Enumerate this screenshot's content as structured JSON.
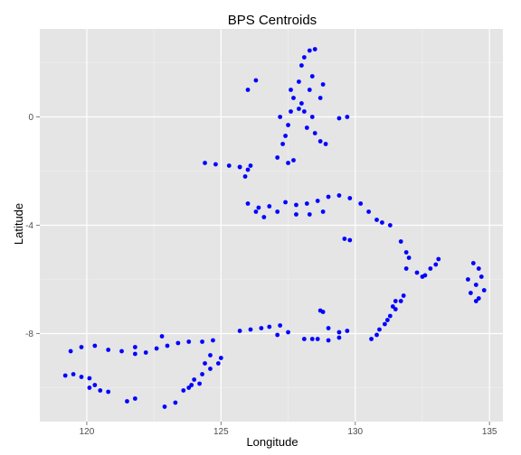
{
  "chart_data": {
    "type": "scatter",
    "title": "BPS Centroids",
    "xlabel": "Longitude",
    "ylabel": "Latitude",
    "xlim": [
      118.25,
      135.5
    ],
    "ylim": [
      -11.25,
      3.25
    ],
    "x_ticks": [
      120,
      125,
      130,
      135
    ],
    "x_tick_labels": [
      "120",
      "125",
      "130",
      "135"
    ],
    "y_ticks": [
      -8,
      -4,
      0
    ],
    "y_tick_labels": [
      "-8",
      "-4",
      "0"
    ],
    "grid": true,
    "panel_color": "#e5e5e5",
    "grid_color": "#ffffff",
    "point_color": "#0000ff",
    "series": [
      {
        "values": [
          {
            "x": 119.2,
            "y": -9.55
          },
          {
            "x": 119.5,
            "y": -9.5
          },
          {
            "x": 119.8,
            "y": -9.6
          },
          {
            "x": 120.1,
            "y": -9.65
          },
          {
            "x": 120.3,
            "y": -9.9
          },
          {
            "x": 120.5,
            "y": -10.1
          },
          {
            "x": 120.8,
            "y": -10.15
          },
          {
            "x": 120.1,
            "y": -10.0
          },
          {
            "x": 119.4,
            "y": -8.65
          },
          {
            "x": 119.8,
            "y": -8.5
          },
          {
            "x": 120.3,
            "y": -8.45
          },
          {
            "x": 120.8,
            "y": -8.6
          },
          {
            "x": 121.3,
            "y": -8.65
          },
          {
            "x": 121.8,
            "y": -8.75
          },
          {
            "x": 122.2,
            "y": -8.7
          },
          {
            "x": 122.6,
            "y": -8.55
          },
          {
            "x": 123.0,
            "y": -8.45
          },
          {
            "x": 123.4,
            "y": -8.35
          },
          {
            "x": 123.8,
            "y": -8.3
          },
          {
            "x": 124.3,
            "y": -8.3
          },
          {
            "x": 124.7,
            "y": -8.25
          },
          {
            "x": 122.8,
            "y": -8.1
          },
          {
            "x": 121.8,
            "y": -8.5
          },
          {
            "x": 121.5,
            "y": -10.5
          },
          {
            "x": 121.8,
            "y": -10.4
          },
          {
            "x": 122.9,
            "y": -10.7
          },
          {
            "x": 123.3,
            "y": -10.55
          },
          {
            "x": 123.6,
            "y": -10.1
          },
          {
            "x": 123.8,
            "y": -10.0
          },
          {
            "x": 124.0,
            "y": -9.7
          },
          {
            "x": 124.3,
            "y": -9.5
          },
          {
            "x": 124.6,
            "y": -9.3
          },
          {
            "x": 124.9,
            "y": -9.1
          },
          {
            "x": 125.0,
            "y": -8.9
          },
          {
            "x": 123.9,
            "y": -9.9
          },
          {
            "x": 124.2,
            "y": -9.85
          },
          {
            "x": 124.4,
            "y": -9.1
          },
          {
            "x": 124.6,
            "y": -8.8
          },
          {
            "x": 124.4,
            "y": -1.7
          },
          {
            "x": 124.8,
            "y": -1.75
          },
          {
            "x": 125.3,
            "y": -1.8
          },
          {
            "x": 125.7,
            "y": -1.85
          },
          {
            "x": 126.0,
            "y": -1.95
          },
          {
            "x": 125.7,
            "y": -1.85
          },
          {
            "x": 125.9,
            "y": -2.2
          },
          {
            "x": 126.1,
            "y": -1.8
          },
          {
            "x": 127.4,
            "y": -3.15
          },
          {
            "x": 127.8,
            "y": -3.25
          },
          {
            "x": 128.2,
            "y": -3.2
          },
          {
            "x": 128.6,
            "y": -3.1
          },
          {
            "x": 129.0,
            "y": -2.95
          },
          {
            "x": 129.4,
            "y": -2.9
          },
          {
            "x": 129.8,
            "y": -3.0
          },
          {
            "x": 130.2,
            "y": -3.2
          },
          {
            "x": 130.5,
            "y": -3.5
          },
          {
            "x": 130.8,
            "y": -3.8
          },
          {
            "x": 131.0,
            "y": -3.9
          },
          {
            "x": 131.3,
            "y": -4.0
          },
          {
            "x": 128.3,
            "y": -3.6
          },
          {
            "x": 128.8,
            "y": -3.5
          },
          {
            "x": 127.8,
            "y": -3.6
          },
          {
            "x": 126.0,
            "y": -3.2
          },
          {
            "x": 126.4,
            "y": -3.35
          },
          {
            "x": 126.8,
            "y": -3.3
          },
          {
            "x": 127.1,
            "y": -3.5
          },
          {
            "x": 126.6,
            "y": -3.7
          },
          {
            "x": 126.3,
            "y": -3.5
          },
          {
            "x": 127.1,
            "y": -1.5
          },
          {
            "x": 127.3,
            "y": -1.0
          },
          {
            "x": 127.5,
            "y": -0.3
          },
          {
            "x": 127.6,
            "y": 0.2
          },
          {
            "x": 127.7,
            "y": 0.7
          },
          {
            "x": 127.9,
            "y": 1.3
          },
          {
            "x": 128.0,
            "y": 1.9
          },
          {
            "x": 128.1,
            "y": 2.2
          },
          {
            "x": 128.3,
            "y": 2.45
          },
          {
            "x": 128.5,
            "y": 2.5
          },
          {
            "x": 128.4,
            "y": 1.5
          },
          {
            "x": 128.3,
            "y": 1.0
          },
          {
            "x": 128.0,
            "y": 0.5
          },
          {
            "x": 128.1,
            "y": 0.2
          },
          {
            "x": 128.4,
            "y": 0.0
          },
          {
            "x": 128.7,
            "y": 0.7
          },
          {
            "x": 128.8,
            "y": 1.2
          },
          {
            "x": 127.9,
            "y": 0.3
          },
          {
            "x": 128.2,
            "y": -0.4
          },
          {
            "x": 128.5,
            "y": -0.6
          },
          {
            "x": 128.7,
            "y": -0.9
          },
          {
            "x": 128.9,
            "y": -1.0
          },
          {
            "x": 127.4,
            "y": -0.7
          },
          {
            "x": 127.6,
            "y": 1.0
          },
          {
            "x": 127.2,
            "y": 0.0
          },
          {
            "x": 126.3,
            "y": 1.35
          },
          {
            "x": 126.0,
            "y": 1.0
          },
          {
            "x": 127.5,
            "y": -1.7
          },
          {
            "x": 127.7,
            "y": -1.6
          },
          {
            "x": 129.4,
            "y": -0.05
          },
          {
            "x": 129.7,
            "y": 0.0
          },
          {
            "x": 129.6,
            "y": -4.5
          },
          {
            "x": 129.8,
            "y": -4.55
          },
          {
            "x": 131.7,
            "y": -4.6
          },
          {
            "x": 131.9,
            "y": -5.0
          },
          {
            "x": 132.0,
            "y": -5.2
          },
          {
            "x": 131.9,
            "y": -5.6
          },
          {
            "x": 132.3,
            "y": -5.75
          },
          {
            "x": 132.6,
            "y": -5.85
          },
          {
            "x": 132.8,
            "y": -5.6
          },
          {
            "x": 133.0,
            "y": -5.45
          },
          {
            "x": 133.1,
            "y": -5.25
          },
          {
            "x": 132.5,
            "y": -5.9
          },
          {
            "x": 134.4,
            "y": -5.4
          },
          {
            "x": 134.6,
            "y": -5.6
          },
          {
            "x": 134.7,
            "y": -5.9
          },
          {
            "x": 134.5,
            "y": -6.2
          },
          {
            "x": 134.3,
            "y": -6.5
          },
          {
            "x": 134.5,
            "y": -6.8
          },
          {
            "x": 134.2,
            "y": -6.0
          },
          {
            "x": 134.8,
            "y": -6.4
          },
          {
            "x": 134.6,
            "y": -6.7
          },
          {
            "x": 125.7,
            "y": -7.9
          },
          {
            "x": 126.1,
            "y": -7.85
          },
          {
            "x": 126.5,
            "y": -7.8
          },
          {
            "x": 126.8,
            "y": -7.75
          },
          {
            "x": 127.2,
            "y": -7.7
          },
          {
            "x": 127.5,
            "y": -7.95
          },
          {
            "x": 127.1,
            "y": -8.05
          },
          {
            "x": 128.1,
            "y": -8.2
          },
          {
            "x": 128.4,
            "y": -8.2
          },
          {
            "x": 128.7,
            "y": -7.15
          },
          {
            "x": 128.8,
            "y": -7.2
          },
          {
            "x": 129.0,
            "y": -7.8
          },
          {
            "x": 129.4,
            "y": -7.95
          },
          {
            "x": 129.7,
            "y": -7.9
          },
          {
            "x": 129.4,
            "y": -8.15
          },
          {
            "x": 129.0,
            "y": -8.25
          },
          {
            "x": 128.6,
            "y": -8.2
          },
          {
            "x": 130.6,
            "y": -8.2
          },
          {
            "x": 130.8,
            "y": -8.05
          },
          {
            "x": 131.1,
            "y": -7.65
          },
          {
            "x": 131.3,
            "y": -7.35
          },
          {
            "x": 131.5,
            "y": -7.1
          },
          {
            "x": 131.7,
            "y": -6.8
          },
          {
            "x": 131.8,
            "y": -6.6
          },
          {
            "x": 131.4,
            "y": -7.0
          },
          {
            "x": 131.2,
            "y": -7.5
          },
          {
            "x": 131.5,
            "y": -6.8
          },
          {
            "x": 130.9,
            "y": -7.85
          }
        ]
      }
    ]
  }
}
